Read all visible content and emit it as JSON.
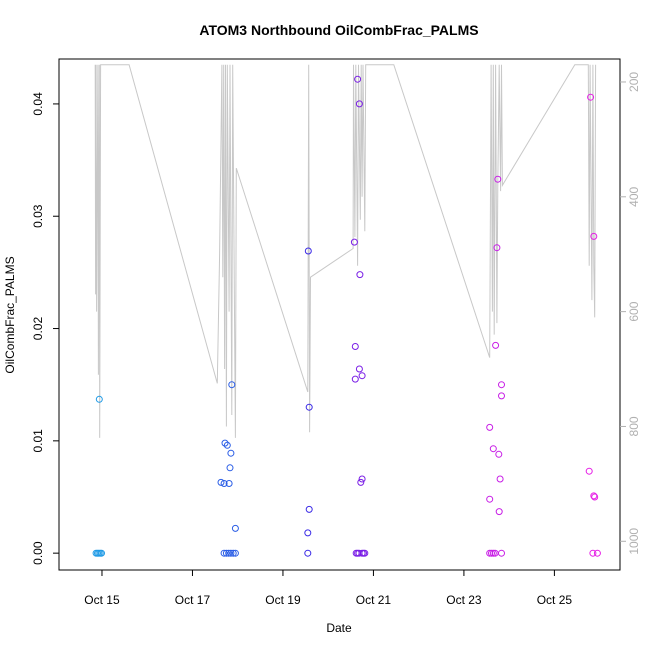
{
  "chart_data": {
    "type": "scatter",
    "title": "ATOM3 Northbound OilCombFrac_PALMS",
    "xlabel": "Date",
    "ylabel": "OilCombFrac_PALMS",
    "x_ticks": [
      "Oct 15",
      "Oct 17",
      "Oct 19",
      "Oct 21",
      "Oct 23",
      "Oct 25"
    ],
    "x_tick_positions": [
      14.85,
      16.85,
      18.85,
      20.85,
      22.85,
      24.85
    ],
    "y_ticks": [
      "0.00",
      "0.01",
      "0.02",
      "0.03",
      "0.04"
    ],
    "y_tick_values": [
      0,
      0.01,
      0.02,
      0.03,
      0.04
    ],
    "y_right_ticks": [
      "200",
      "400",
      "600",
      "800",
      "1000"
    ],
    "y_right_tick_values": [
      200,
      400,
      600,
      800,
      1000
    ],
    "xlim": [
      13.9,
      26.3
    ],
    "ylim": [
      -0.0015,
      0.044
    ],
    "y_right_lim": [
      1050,
      160
    ],
    "right_axis_color": "#b0b0b0",
    "line_color": "#c8c8c8",
    "grid": false,
    "points": [
      {
        "x": 14.72,
        "y": 0.0,
        "color": "#1e9ae6"
      },
      {
        "x": 14.75,
        "y": 0.0,
        "color": "#1e9ae6"
      },
      {
        "x": 14.78,
        "y": 0.0,
        "color": "#1e9ae6"
      },
      {
        "x": 14.81,
        "y": 0.0,
        "color": "#1e9ae6"
      },
      {
        "x": 14.84,
        "y": 0.0,
        "color": "#1e9ae6"
      },
      {
        "x": 14.79,
        "y": 0.0137,
        "color": "#1e9ae6"
      },
      {
        "x": 17.48,
        "y": 0.0063,
        "color": "#2a5de6"
      },
      {
        "x": 17.55,
        "y": 0.0062,
        "color": "#2a5de6"
      },
      {
        "x": 17.57,
        "y": 0.0098,
        "color": "#2a5de6"
      },
      {
        "x": 17.62,
        "y": 0.0096,
        "color": "#2a5de6"
      },
      {
        "x": 17.66,
        "y": 0.0062,
        "color": "#2a5de6"
      },
      {
        "x": 17.68,
        "y": 0.0076,
        "color": "#2a5de6"
      },
      {
        "x": 17.7,
        "y": 0.0089,
        "color": "#2a5de6"
      },
      {
        "x": 17.72,
        "y": 0.015,
        "color": "#2a5de6"
      },
      {
        "x": 17.8,
        "y": 0.0022,
        "color": "#2a5de6"
      },
      {
        "x": 17.55,
        "y": 0.0,
        "color": "#2a5de6"
      },
      {
        "x": 17.6,
        "y": 0.0,
        "color": "#2a5de6"
      },
      {
        "x": 17.65,
        "y": 0.0,
        "color": "#2a5de6"
      },
      {
        "x": 17.7,
        "y": 0.0,
        "color": "#2a5de6"
      },
      {
        "x": 17.75,
        "y": 0.0,
        "color": "#2a5de6"
      },
      {
        "x": 17.8,
        "y": 0.0,
        "color": "#2a5de6"
      },
      {
        "x": 19.4,
        "y": 0.0,
        "color": "#3a2ae6"
      },
      {
        "x": 19.4,
        "y": 0.0018,
        "color": "#3a2ae6"
      },
      {
        "x": 19.43,
        "y": 0.0039,
        "color": "#3a2ae6"
      },
      {
        "x": 19.43,
        "y": 0.013,
        "color": "#3a2ae6"
      },
      {
        "x": 19.41,
        "y": 0.0269,
        "color": "#3a2ae6"
      },
      {
        "x": 20.43,
        "y": 0.0277,
        "color": "#7a1ee6"
      },
      {
        "x": 20.45,
        "y": 0.0184,
        "color": "#7a1ee6"
      },
      {
        "x": 20.45,
        "y": 0.0155,
        "color": "#7a1ee6"
      },
      {
        "x": 20.5,
        "y": 0.0422,
        "color": "#7a1ee6"
      },
      {
        "x": 20.54,
        "y": 0.04,
        "color": "#7a1ee6"
      },
      {
        "x": 20.55,
        "y": 0.0248,
        "color": "#7a1ee6"
      },
      {
        "x": 20.54,
        "y": 0.0164,
        "color": "#7a1ee6"
      },
      {
        "x": 20.6,
        "y": 0.0158,
        "color": "#7a1ee6"
      },
      {
        "x": 20.57,
        "y": 0.0063,
        "color": "#7a1ee6"
      },
      {
        "x": 20.6,
        "y": 0.0066,
        "color": "#7a1ee6"
      },
      {
        "x": 20.47,
        "y": 0.0,
        "color": "#7a1ee6"
      },
      {
        "x": 20.5,
        "y": 0.0,
        "color": "#7a1ee6"
      },
      {
        "x": 20.53,
        "y": 0.0,
        "color": "#7a1ee6"
      },
      {
        "x": 20.6,
        "y": 0.0,
        "color": "#7a1ee6"
      },
      {
        "x": 20.63,
        "y": 0.0,
        "color": "#7a1ee6"
      },
      {
        "x": 20.66,
        "y": 0.0,
        "color": "#7a1ee6"
      },
      {
        "x": 23.42,
        "y": 0.0112,
        "color": "#c81ee6"
      },
      {
        "x": 23.42,
        "y": 0.0048,
        "color": "#c81ee6"
      },
      {
        "x": 23.5,
        "y": 0.0093,
        "color": "#c81ee6"
      },
      {
        "x": 23.55,
        "y": 0.0185,
        "color": "#c81ee6"
      },
      {
        "x": 23.58,
        "y": 0.0272,
        "color": "#c81ee6"
      },
      {
        "x": 23.6,
        "y": 0.0333,
        "color": "#c81ee6"
      },
      {
        "x": 23.62,
        "y": 0.0088,
        "color": "#c81ee6"
      },
      {
        "x": 23.63,
        "y": 0.0037,
        "color": "#c81ee6"
      },
      {
        "x": 23.65,
        "y": 0.0066,
        "color": "#c81ee6"
      },
      {
        "x": 23.68,
        "y": 0.015,
        "color": "#c81ee6"
      },
      {
        "x": 23.68,
        "y": 0.014,
        "color": "#c81ee6"
      },
      {
        "x": 23.42,
        "y": 0.0,
        "color": "#c81ee6"
      },
      {
        "x": 23.46,
        "y": 0.0,
        "color": "#c81ee6"
      },
      {
        "x": 23.5,
        "y": 0.0,
        "color": "#c81ee6"
      },
      {
        "x": 23.54,
        "y": 0.0,
        "color": "#c81ee6"
      },
      {
        "x": 23.68,
        "y": 0.0,
        "color": "#c81ee6"
      },
      {
        "x": 25.65,
        "y": 0.0406,
        "color": "#e61ee6"
      },
      {
        "x": 25.72,
        "y": 0.0282,
        "color": "#e61ee6"
      },
      {
        "x": 25.62,
        "y": 0.0073,
        "color": "#e61ee6"
      },
      {
        "x": 25.72,
        "y": 0.0051,
        "color": "#e61ee6"
      },
      {
        "x": 25.74,
        "y": 0.005,
        "color": "#e61ee6"
      },
      {
        "x": 25.7,
        "y": 0.0,
        "color": "#e61ee6"
      },
      {
        "x": 25.8,
        "y": 0.0,
        "color": "#e61ee6"
      }
    ],
    "altitude_line": [
      {
        "x": 14.7,
        "alt": 170
      },
      {
        "x": 14.71,
        "alt": 570
      },
      {
        "x": 14.72,
        "alt": 170
      },
      {
        "x": 14.73,
        "alt": 600
      },
      {
        "x": 14.76,
        "alt": 170
      },
      {
        "x": 14.77,
        "alt": 710
      },
      {
        "x": 14.79,
        "alt": 170
      },
      {
        "x": 14.8,
        "alt": 820
      },
      {
        "x": 14.82,
        "alt": 170
      },
      {
        "x": 15.45,
        "alt": 170
      },
      {
        "x": 17.4,
        "alt": 725
      },
      {
        "x": 17.45,
        "alt": 500
      },
      {
        "x": 17.5,
        "alt": 170
      },
      {
        "x": 17.52,
        "alt": 540
      },
      {
        "x": 17.54,
        "alt": 170
      },
      {
        "x": 17.56,
        "alt": 700
      },
      {
        "x": 17.58,
        "alt": 170
      },
      {
        "x": 17.6,
        "alt": 800
      },
      {
        "x": 17.62,
        "alt": 170
      },
      {
        "x": 17.66,
        "alt": 600
      },
      {
        "x": 17.68,
        "alt": 170
      },
      {
        "x": 17.72,
        "alt": 780
      },
      {
        "x": 17.74,
        "alt": 170
      },
      {
        "x": 17.8,
        "alt": 820
      },
      {
        "x": 17.82,
        "alt": 350
      },
      {
        "x": 19.4,
        "alt": 740
      },
      {
        "x": 19.42,
        "alt": 170
      },
      {
        "x": 19.44,
        "alt": 810
      },
      {
        "x": 19.46,
        "alt": 540
      },
      {
        "x": 20.4,
        "alt": 490
      },
      {
        "x": 20.41,
        "alt": 170
      },
      {
        "x": 20.44,
        "alt": 470
      },
      {
        "x": 20.46,
        "alt": 170
      },
      {
        "x": 20.5,
        "alt": 520
      },
      {
        "x": 20.52,
        "alt": 170
      },
      {
        "x": 20.56,
        "alt": 440
      },
      {
        "x": 20.58,
        "alt": 170
      },
      {
        "x": 20.6,
        "alt": 400
      },
      {
        "x": 20.62,
        "alt": 170
      },
      {
        "x": 20.66,
        "alt": 460
      },
      {
        "x": 20.68,
        "alt": 170
      },
      {
        "x": 21.3,
        "alt": 170
      },
      {
        "x": 23.42,
        "alt": 680
      },
      {
        "x": 23.45,
        "alt": 170
      },
      {
        "x": 23.48,
        "alt": 600
      },
      {
        "x": 23.5,
        "alt": 170
      },
      {
        "x": 23.52,
        "alt": 640
      },
      {
        "x": 23.55,
        "alt": 170
      },
      {
        "x": 23.58,
        "alt": 620
      },
      {
        "x": 23.6,
        "alt": 380
      },
      {
        "x": 23.63,
        "alt": 170
      },
      {
        "x": 23.66,
        "alt": 390
      },
      {
        "x": 23.68,
        "alt": 170
      },
      {
        "x": 23.7,
        "alt": 380
      },
      {
        "x": 25.3,
        "alt": 170
      },
      {
        "x": 25.6,
        "alt": 170
      },
      {
        "x": 25.62,
        "alt": 520
      },
      {
        "x": 25.64,
        "alt": 170
      },
      {
        "x": 25.68,
        "alt": 580
      },
      {
        "x": 25.7,
        "alt": 170
      },
      {
        "x": 25.72,
        "alt": 520
      },
      {
        "x": 25.74,
        "alt": 610
      },
      {
        "x": 25.76,
        "alt": 170
      }
    ]
  }
}
